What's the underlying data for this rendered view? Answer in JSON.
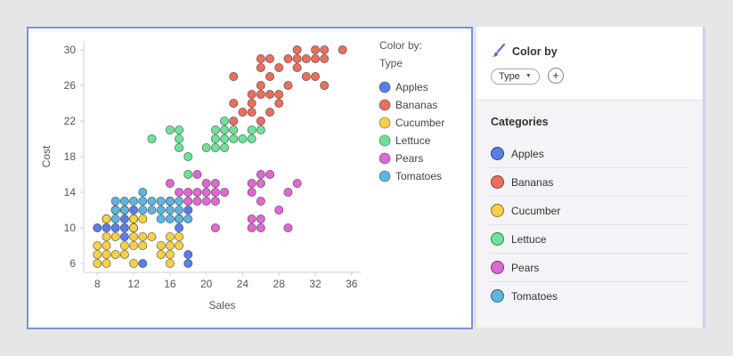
{
  "chart_data": {
    "type": "scatter",
    "xlabel": "Sales",
    "ylabel": "Cost",
    "xlim": [
      6.5,
      37
    ],
    "ylim": [
      5,
      31
    ],
    "xticks": [
      8,
      12,
      16,
      20,
      24,
      28,
      32,
      36
    ],
    "yticks": [
      6,
      10,
      14,
      18,
      22,
      26,
      30
    ],
    "legend_position": "right",
    "legend_title": "Color by:",
    "legend_subtitle": "Type",
    "series": [
      {
        "name": "Apples",
        "color": "#5a7de8",
        "points": [
          [
            8,
            10
          ],
          [
            9,
            10
          ],
          [
            9,
            11
          ],
          [
            10,
            10
          ],
          [
            10,
            12
          ],
          [
            11,
            9
          ],
          [
            11,
            10
          ],
          [
            11,
            11
          ],
          [
            11,
            12
          ],
          [
            12,
            10
          ],
          [
            12,
            11
          ],
          [
            12,
            12
          ],
          [
            13,
            6
          ],
          [
            17,
            10
          ],
          [
            17,
            11
          ],
          [
            18,
            6
          ],
          [
            18,
            7
          ],
          [
            18,
            12
          ]
        ]
      },
      {
        "name": "Bananas",
        "color": "#ec6e5d",
        "points": [
          [
            23,
            22
          ],
          [
            23,
            24
          ],
          [
            23,
            27
          ],
          [
            24,
            23
          ],
          [
            25,
            23
          ],
          [
            25,
            24
          ],
          [
            25,
            25
          ],
          [
            26,
            22
          ],
          [
            26,
            25
          ],
          [
            26,
            26
          ],
          [
            26,
            28
          ],
          [
            26,
            29
          ],
          [
            27,
            23
          ],
          [
            27,
            25
          ],
          [
            27,
            27
          ],
          [
            27,
            29
          ],
          [
            28,
            24
          ],
          [
            28,
            25
          ],
          [
            28,
            28
          ],
          [
            29,
            26
          ],
          [
            29,
            29
          ],
          [
            30,
            28
          ],
          [
            30,
            29
          ],
          [
            30,
            30
          ],
          [
            31,
            27
          ],
          [
            31,
            29
          ],
          [
            32,
            27
          ],
          [
            32,
            29
          ],
          [
            32,
            30
          ],
          [
            33,
            26
          ],
          [
            33,
            29
          ],
          [
            33,
            30
          ],
          [
            35,
            30
          ]
        ]
      },
      {
        "name": "Cucumber",
        "color": "#f7d145",
        "points": [
          [
            8,
            6
          ],
          [
            8,
            7
          ],
          [
            8,
            8
          ],
          [
            9,
            6
          ],
          [
            9,
            7
          ],
          [
            9,
            8
          ],
          [
            9,
            9
          ],
          [
            9,
            11
          ],
          [
            10,
            7
          ],
          [
            10,
            9
          ],
          [
            11,
            7
          ],
          [
            11,
            8
          ],
          [
            12,
            6
          ],
          [
            12,
            8
          ],
          [
            12,
            9
          ],
          [
            12,
            10
          ],
          [
            12,
            11
          ],
          [
            13,
            8
          ],
          [
            13,
            9
          ],
          [
            13,
            11
          ],
          [
            14,
            9
          ],
          [
            15,
            7
          ],
          [
            15,
            8
          ],
          [
            16,
            6
          ],
          [
            16,
            7
          ],
          [
            16,
            8
          ],
          [
            16,
            9
          ],
          [
            17,
            8
          ],
          [
            17,
            9
          ]
        ]
      },
      {
        "name": "Lettuce",
        "color": "#6de39a",
        "points": [
          [
            14,
            20
          ],
          [
            16,
            21
          ],
          [
            17,
            19
          ],
          [
            17,
            20
          ],
          [
            17,
            21
          ],
          [
            18,
            16
          ],
          [
            18,
            18
          ],
          [
            20,
            19
          ],
          [
            21,
            19
          ],
          [
            21,
            20
          ],
          [
            21,
            21
          ],
          [
            22,
            19
          ],
          [
            22,
            20
          ],
          [
            22,
            21
          ],
          [
            22,
            22
          ],
          [
            23,
            20
          ],
          [
            23,
            21
          ],
          [
            24,
            20
          ],
          [
            25,
            20
          ],
          [
            25,
            21
          ],
          [
            26,
            21
          ]
        ]
      },
      {
        "name": "Pears",
        "color": "#e067d4",
        "points": [
          [
            16,
            13
          ],
          [
            16,
            15
          ],
          [
            17,
            14
          ],
          [
            18,
            13
          ],
          [
            18,
            14
          ],
          [
            19,
            13
          ],
          [
            19,
            14
          ],
          [
            19,
            16
          ],
          [
            20,
            13
          ],
          [
            20,
            14
          ],
          [
            20,
            15
          ],
          [
            21,
            10
          ],
          [
            21,
            13
          ],
          [
            21,
            14
          ],
          [
            21,
            15
          ],
          [
            22,
            14
          ],
          [
            25,
            10
          ],
          [
            25,
            11
          ],
          [
            25,
            14
          ],
          [
            25,
            15
          ],
          [
            26,
            10
          ],
          [
            26,
            11
          ],
          [
            26,
            13
          ],
          [
            26,
            15
          ],
          [
            26,
            16
          ],
          [
            27,
            16
          ],
          [
            28,
            12
          ],
          [
            29,
            10
          ],
          [
            29,
            14
          ],
          [
            30,
            15
          ]
        ]
      },
      {
        "name": "Tomatoes",
        "color": "#5db6e2",
        "points": [
          [
            10,
            11
          ],
          [
            10,
            12
          ],
          [
            10,
            13
          ],
          [
            11,
            12
          ],
          [
            11,
            13
          ],
          [
            12,
            13
          ],
          [
            13,
            12
          ],
          [
            13,
            13
          ],
          [
            13,
            14
          ],
          [
            14,
            12
          ],
          [
            14,
            13
          ],
          [
            15,
            11
          ],
          [
            15,
            12
          ],
          [
            15,
            13
          ],
          [
            16,
            11
          ],
          [
            16,
            12
          ],
          [
            16,
            13
          ],
          [
            17,
            11
          ],
          [
            17,
            12
          ],
          [
            17,
            13
          ],
          [
            18,
            11
          ]
        ]
      }
    ]
  },
  "right_panel": {
    "color_by_title": "Color by",
    "color_by_value": "Type",
    "add_button": "+",
    "categories_title": "Categories",
    "categories": [
      {
        "label": "Apples",
        "color": "#5a7de8"
      },
      {
        "label": "Bananas",
        "color": "#ec6e5d"
      },
      {
        "label": "Cucumber",
        "color": "#f7d145"
      },
      {
        "label": "Lettuce",
        "color": "#6de39a"
      },
      {
        "label": "Pears",
        "color": "#e067d4"
      },
      {
        "label": "Tomatoes",
        "color": "#5db6e2"
      }
    ]
  }
}
